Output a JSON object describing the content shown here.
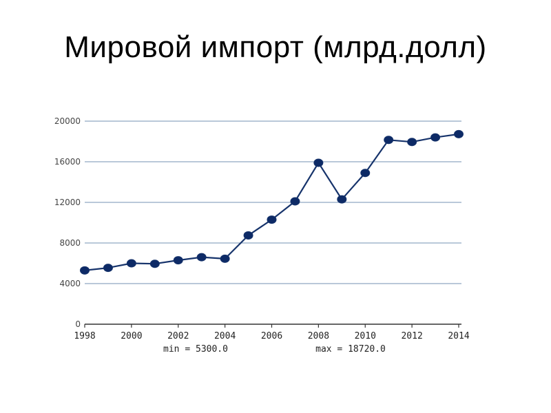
{
  "title": "Мировой импорт (млрд.долл)",
  "colors": {
    "line": "#16336b",
    "marker": "#0d2a66",
    "grid": "#8fa7c2",
    "axis": "#333333"
  },
  "chart_data": {
    "type": "line",
    "title": "Мировой импорт (млрд.долл)",
    "xlabel": "",
    "ylabel": "",
    "x": [
      1998,
      1999,
      2000,
      2001,
      2002,
      2003,
      2004,
      2005,
      2006,
      2007,
      2008,
      2009,
      2010,
      2011,
      2012,
      2013,
      2014
    ],
    "series": [
      {
        "values": [
          5300,
          5550,
          6000,
          5950,
          6300,
          6600,
          6450,
          8750,
          10300,
          12100,
          15900,
          12300,
          14900,
          18150,
          17950,
          18400,
          18720
        ]
      }
    ],
    "xlim": [
      1998,
      2014
    ],
    "ylim": [
      0,
      20000
    ],
    "yticks": [
      0,
      4000,
      8000,
      12000,
      16000,
      20000
    ],
    "xticks": [
      1998,
      2000,
      2002,
      2004,
      2006,
      2008,
      2010,
      2012,
      2014
    ],
    "grid": true,
    "stats": {
      "min_label": "min = 5300.0",
      "max_label": "max = 18720.0"
    }
  }
}
